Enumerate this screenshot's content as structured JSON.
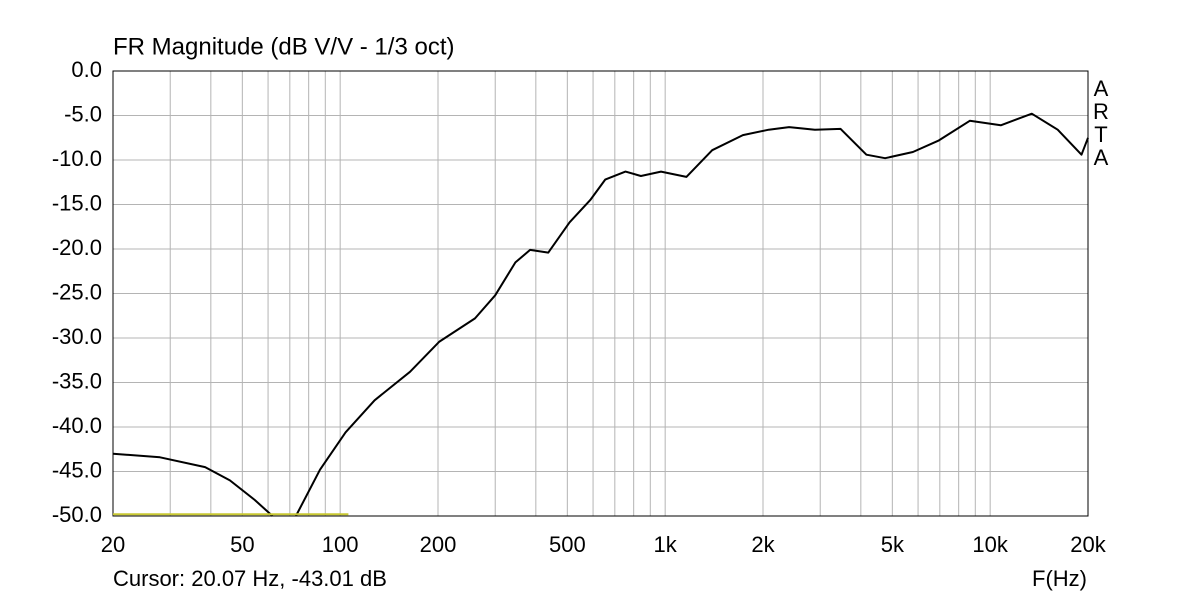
{
  "chart_data": {
    "type": "line",
    "title": "FR Magnitude (dB V/V - 1/3 oct)",
    "x_label": "F(Hz)",
    "side_label": "ARTA",
    "cursor_text": "Cursor: 20.07 Hz, -43.01 dB",
    "xscale": "log",
    "grid": true,
    "xlim": [
      20,
      20000
    ],
    "ylim": [
      -50,
      0
    ],
    "xticks": [
      20,
      50,
      100,
      200,
      500,
      {
        "value": 1000,
        "label": "1k"
      },
      {
        "value": 2000,
        "label": "2k"
      },
      {
        "value": 5000,
        "label": "5k"
      },
      {
        "value": 10000,
        "label": "10k"
      },
      {
        "value": 20000,
        "label": "20k"
      }
    ],
    "xgrid_minor": [
      30,
      40,
      60,
      70,
      80,
      90,
      300,
      400,
      600,
      700,
      800,
      900,
      3000,
      4000,
      6000,
      7000,
      8000,
      9000
    ],
    "yticks": [
      {
        "value": 0,
        "label": "0.0"
      },
      {
        "value": -5,
        "label": "-5.0"
      },
      {
        "value": -10,
        "label": "-10.0"
      },
      {
        "value": -15,
        "label": "-15.0"
      },
      {
        "value": -20,
        "label": "-20.0"
      },
      {
        "value": -25,
        "label": "-25.0"
      },
      {
        "value": -30,
        "label": "-30.0"
      },
      {
        "value": -35,
        "label": "-35.0"
      },
      {
        "value": -40,
        "label": "-40.0"
      },
      {
        "value": -45,
        "label": "-45.0"
      },
      {
        "value": -50,
        "label": "-50.0"
      }
    ],
    "series": [
      {
        "color": "#000000",
        "x": [
          20,
          27.9,
          38.4,
          45.8,
          54.6,
          61.9,
          67,
          73.1,
          86.7,
          103.9,
          127.6,
          164,
          202,
          260,
          300,
          346,
          384,
          437,
          508,
          588,
          654,
          755,
          842,
          971,
          1162,
          1395,
          1734,
          2083,
          2406,
          2889,
          3466,
          4160,
          4750,
          5786,
          6953,
          8656,
          10780,
          13430,
          16140,
          19100,
          20000
        ],
        "values": [
          -43.0,
          -43.4,
          -44.5,
          -46,
          -48.2,
          -50,
          null,
          -50,
          -44.8,
          -40.6,
          -37,
          -33.8,
          -30.4,
          -27.8,
          -25.2,
          -21.5,
          -20.1,
          -20.4,
          -17,
          -14.5,
          -12.2,
          -11.3,
          -11.8,
          -11.3,
          -11.9,
          -8.9,
          -7.2,
          -6.6,
          -6.3,
          -6.6,
          -6.5,
          -9.4,
          -9.8,
          -9.1,
          -7.8,
          -5.6,
          -6.1,
          -4.8,
          -6.6,
          -9.4,
          -7.5
        ]
      },
      {
        "color": "#c8c832",
        "x": [
          20,
          106
        ],
        "values": [
          -49.8,
          -49.8
        ]
      }
    ]
  }
}
